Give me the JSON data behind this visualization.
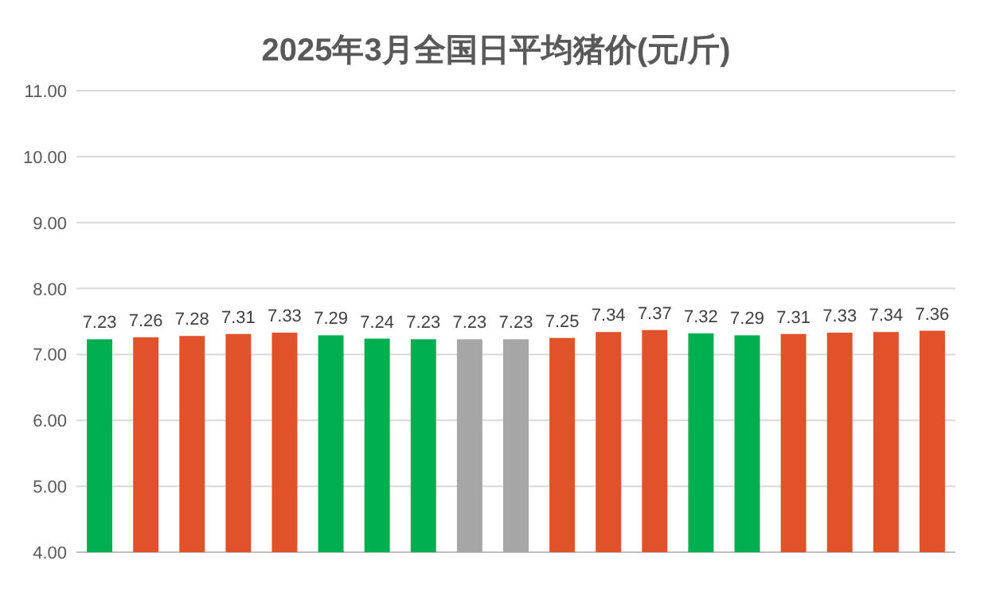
{
  "chart_data": {
    "type": "bar",
    "title": "2025年3月全国日平均猪价(元/斤)",
    "categories": [
      null,
      null,
      null,
      null,
      null,
      null,
      null,
      null,
      null,
      null,
      null,
      null,
      null,
      null,
      null,
      null,
      null,
      null,
      null
    ],
    "values": [
      7.23,
      7.26,
      7.28,
      7.31,
      7.33,
      7.29,
      7.24,
      7.23,
      7.23,
      7.23,
      7.25,
      7.34,
      7.37,
      7.32,
      7.29,
      7.31,
      7.33,
      7.34,
      7.36
    ],
    "colors": [
      "#00b050",
      "#e2522a",
      "#e2522a",
      "#e2522a",
      "#e2522a",
      "#00b050",
      "#00b050",
      "#00b050",
      "#a6a6a6",
      "#a6a6a6",
      "#e2522a",
      "#e2522a",
      "#e2522a",
      "#00b050",
      "#00b050",
      "#e2522a",
      "#e2522a",
      "#e2522a",
      "#e2522a"
    ],
    "ylim": [
      4,
      11
    ],
    "yticks": [
      {
        "value": 4,
        "label": "4.00"
      },
      {
        "value": 5,
        "label": "5.00"
      },
      {
        "value": 6,
        "label": "6.00"
      },
      {
        "value": 7,
        "label": "7.00"
      },
      {
        "value": 8,
        "label": "8.00"
      },
      {
        "value": 9,
        "label": "9.00"
      },
      {
        "value": 10,
        "label": "10.00"
      },
      {
        "value": 11,
        "label": "11.00"
      }
    ],
    "grid": "y",
    "data_labels": true
  }
}
